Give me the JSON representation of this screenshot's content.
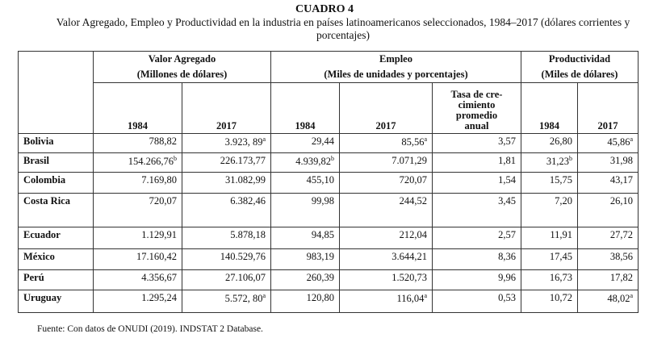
{
  "header": {
    "title": "CUADRO 4",
    "subtitle": "Valor Agregado, Empleo y Productividad en la industria en países latinoamericanos seleccionados, 1984–2017 (dólares corrientes y porcentajes)"
  },
  "table": {
    "groups": [
      {
        "title": "Valor Agregado",
        "unit": "(Millones de dólares)"
      },
      {
        "title": "Empleo",
        "unit": "(Miles de unidades y porcentajes)"
      },
      {
        "title": "Productividad",
        "unit": "(Miles de dólares)"
      }
    ],
    "columns": [
      [
        "1984"
      ],
      [
        "2017"
      ],
      [
        "1984"
      ],
      [
        "2017"
      ],
      [
        "Tasa de cre-",
        "cimiento",
        "promedio",
        "anual"
      ],
      [
        "1984"
      ],
      [
        "2017"
      ]
    ],
    "rows": [
      [
        "Bolivia",
        "788,82",
        {
          "text": "3.923, 89",
          "note": "a"
        },
        "29,44",
        {
          "text": "85,56",
          "note": "a"
        },
        "3,57",
        "26,80",
        {
          "text": "45,86",
          "note": "a"
        }
      ],
      [
        "Brasil",
        {
          "text": "154.266,76",
          "note": "b"
        },
        "226.173,77",
        {
          "text": "4.939,82",
          "note": "b"
        },
        "7.071,29",
        "1,81",
        {
          "text": "31,23",
          "note": "b"
        },
        "31,98"
      ],
      [
        "Colombia",
        "7.169,80",
        "31.082,99",
        "455,10",
        "720,07",
        "1,54",
        "15,75",
        "43,17"
      ],
      [
        "Costa Rica",
        "720,07",
        "6.382,46",
        "99,98",
        "244,52",
        "3,45",
        "7,20",
        "26,10"
      ],
      [
        "Ecuador",
        "1.129,91",
        "5.878,18",
        "94,85",
        "212,04",
        "2,57",
        "11,91",
        "27,72"
      ],
      [
        "México",
        "17.160,42",
        "140.529,76",
        "983,19",
        "3.644,21",
        "8,36",
        "17,45",
        "38,56"
      ],
      [
        "Perú",
        "4.356,67",
        "27.106,07",
        "260,39",
        "1.520,73",
        "9,96",
        "16,73",
        "17,82"
      ],
      [
        "Uruguay",
        "1.295,24",
        {
          "text": "5.572, 80",
          "note": "a"
        },
        "120,80",
        {
          "text": "116,04",
          "note": "a"
        },
        "0,53",
        "10,72",
        {
          "text": "48,02",
          "note": "a"
        }
      ]
    ]
  },
  "footer": {
    "source": "Fuente: Con datos de ONUDI (2019). INDSTAT 2 Database."
  }
}
